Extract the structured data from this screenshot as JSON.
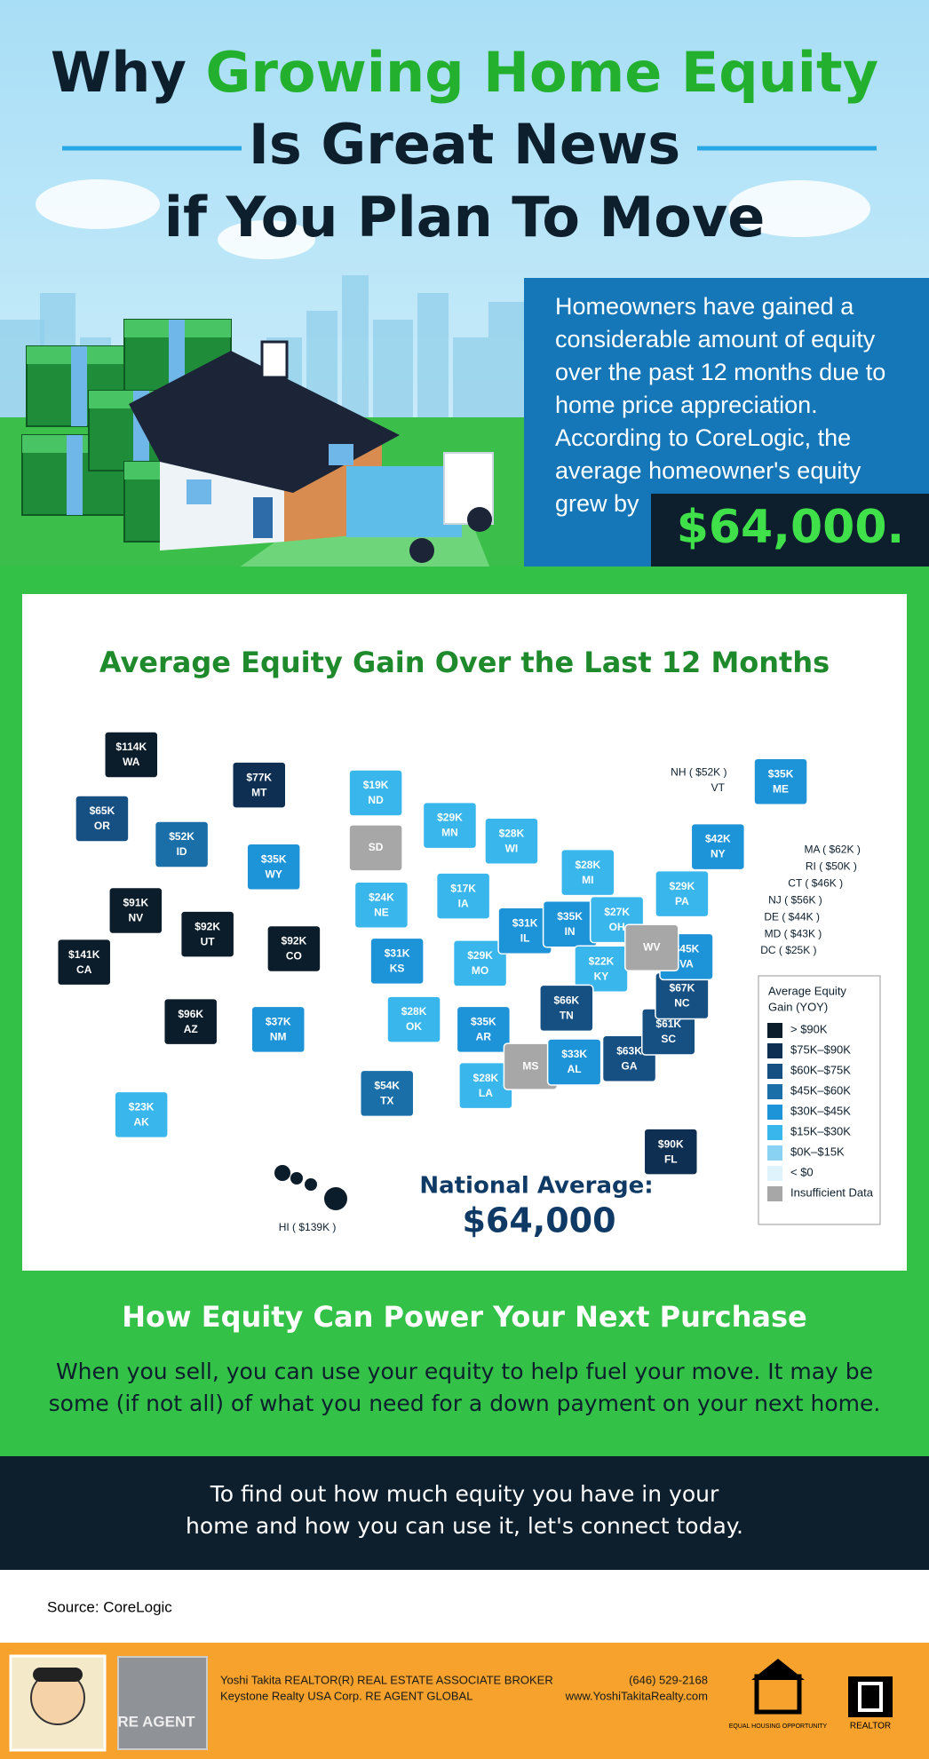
{
  "header": {
    "title": {
      "line1_part1": "Why",
      "line1_part2": "Growing Home Equity",
      "line2": "Is Great News",
      "line3": "if You Plan To Move"
    },
    "intro_lines": [
      "Homeowners have gained a",
      "considerable amount of equity",
      "over the past 12 months due to",
      "home price appreciation.",
      "According to CoreLogic, the",
      "average homeowner's equity",
      "grew by"
    ],
    "highlight": "$64,000."
  },
  "map": {
    "title": "Average Equity Gain Over the Last 12 Months",
    "states": [
      {
        "value": "$114K",
        "code": "WA",
        "color": "#0b1c2a"
      },
      {
        "value": "$65K",
        "code": "OR",
        "color": "#164f82"
      },
      {
        "value": "$52K",
        "code": "ID",
        "color": "#1a6fa8"
      },
      {
        "value": "$77K",
        "code": "MT",
        "color": "#0e2f52"
      },
      {
        "value": "$35K",
        "code": "WY",
        "color": "#1d93d8"
      },
      {
        "value": "$91K",
        "code": "NV",
        "color": "#0b1c2a"
      },
      {
        "value": "$92K",
        "code": "UT",
        "color": "#0b1c2a"
      },
      {
        "value": "$92K",
        "code": "CO",
        "color": "#0b1c2a"
      },
      {
        "value": "$141K",
        "code": "CA",
        "color": "#0b1c2a"
      },
      {
        "value": "$96K",
        "code": "AZ",
        "color": "#0b1c2a"
      },
      {
        "value": "$37K",
        "code": "NM",
        "color": "#1d93d8"
      },
      {
        "value": "$19K",
        "code": "ND",
        "color": "#39b6ec"
      },
      {
        "code": "SD",
        "color": "#a7a7a7"
      },
      {
        "value": "$24K",
        "code": "NE",
        "color": "#39b6ec"
      },
      {
        "value": "$31K",
        "code": "KS",
        "color": "#1d93d8"
      },
      {
        "value": "$28K",
        "code": "OK",
        "color": "#39b6ec"
      },
      {
        "value": "$54K",
        "code": "TX",
        "color": "#1a6fa8"
      },
      {
        "value": "$29K",
        "code": "MN",
        "color": "#39b6ec"
      },
      {
        "value": "$17K",
        "code": "IA",
        "color": "#39b6ec"
      },
      {
        "value": "$29K",
        "code": "MO",
        "color": "#39b6ec"
      },
      {
        "value": "$35K",
        "code": "AR",
        "color": "#1d93d8"
      },
      {
        "value": "$28K",
        "code": "LA",
        "color": "#39b6ec"
      },
      {
        "value": "$28K",
        "code": "WI",
        "color": "#39b6ec"
      },
      {
        "value": "$31K",
        "code": "IL",
        "color": "#1d93d8"
      },
      {
        "code": "MS",
        "color": "#a7a7a7"
      },
      {
        "value": "$28K",
        "code": "MI",
        "color": "#39b6ec"
      },
      {
        "value": "$35K",
        "code": "IN",
        "color": "#1d93d8"
      },
      {
        "value": "$27K",
        "code": "OH",
        "color": "#39b6ec"
      },
      {
        "value": "$22K",
        "code": "KY",
        "color": "#39b6ec"
      },
      {
        "value": "$66K",
        "code": "TN",
        "color": "#164f82"
      },
      {
        "value": "$33K",
        "code": "AL",
        "color": "#1d93d8"
      },
      {
        "value": "$63K",
        "code": "GA",
        "color": "#164f82"
      },
      {
        "value": "$90K",
        "code": "FL",
        "color": "#0e2f52"
      },
      {
        "value": "$61K",
        "code": "SC",
        "color": "#164f82"
      },
      {
        "value": "$67K",
        "code": "NC",
        "color": "#164f82"
      },
      {
        "value": "$45K",
        "code": "VA",
        "color": "#1d93d8"
      },
      {
        "code": "WV",
        "color": "#a7a7a7"
      },
      {
        "value": "$29K",
        "code": "PA",
        "color": "#39b6ec"
      },
      {
        "value": "$42K",
        "code": "NY",
        "color": "#1d93d8"
      },
      {
        "value": "$35K",
        "code": "ME",
        "color": "#1d93d8"
      },
      {
        "value": "$23K",
        "code": "AK",
        "color": "#39b6ec"
      }
    ],
    "callouts": [
      "NH ( $52K )",
      "VT",
      "MA ( $62K )",
      "RI ( $50K )",
      "CT ( $46K )",
      "NJ ( $56K )",
      "DE ( $44K )",
      "MD ( $43K )",
      "DC ( $25K )",
      "HI ( $139K )"
    ],
    "national_label": "National Average:",
    "national_value": "$64,000",
    "legend": {
      "title_lines": [
        "Average Equity",
        "Gain (YOY)"
      ],
      "items": [
        {
          "label": "> $90K",
          "color": "#0b1c2a"
        },
        {
          "label": "$75K–$90K",
          "color": "#0e2f52"
        },
        {
          "label": "$60K–$75K",
          "color": "#164f82"
        },
        {
          "label": "$45K–$60K",
          "color": "#1a6fa8"
        },
        {
          "label": "$30K–$45K",
          "color": "#1d93d8"
        },
        {
          "label": "$15K–$30K",
          "color": "#39b6ec"
        },
        {
          "label": "$0K–$15K",
          "color": "#8ad2f3"
        },
        {
          "label": "< $0",
          "color": "#dff3fc"
        },
        {
          "label": "Insufficient Data",
          "color": "#a7a7a7"
        }
      ]
    }
  },
  "section": {
    "heading": "How Equity Can Power Your Next Purchase",
    "lines": [
      "When you sell, you can use your equity to help fuel your move. It may be",
      "some (if not all) of what you need for a down payment on your next home."
    ]
  },
  "cta": {
    "lines": [
      "To find out how much equity you have in your",
      "home and how you can use it, let's connect today."
    ]
  },
  "source": "Source: CoreLogic",
  "footer": {
    "logo_text": "RE AGENT",
    "agent_line1": "Yoshi Takita REALTOR(R) REAL ESTATE ASSOCIATE BROKER",
    "agent_line2": "Keystone Realty USA Corp.  RE AGENT GLOBAL",
    "phone": "(646) 529-2168",
    "website": "www.YoshiTakitaRealty.com",
    "equal_housing": "EQUAL HOUSING OPPORTUNITY",
    "realtor": "REALTOR"
  }
}
